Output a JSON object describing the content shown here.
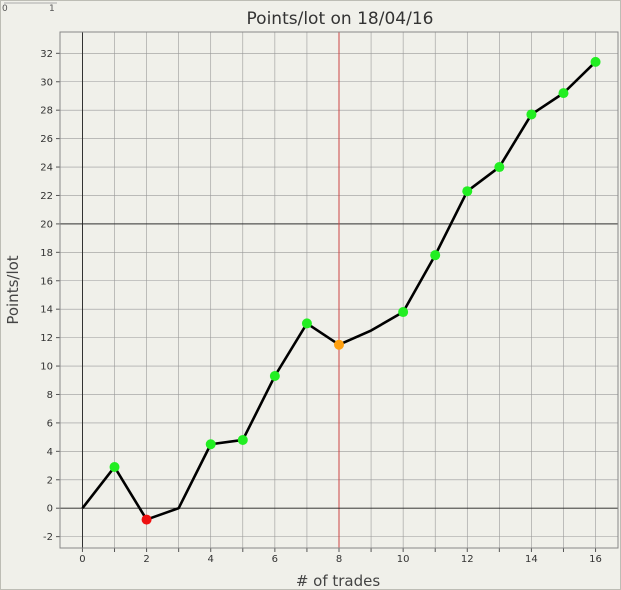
{
  "corner": {
    "left": "0",
    "right": "1"
  },
  "chart_data": {
    "type": "line",
    "title": "Points/lot on 18/04/16",
    "xlabel": "# of trades",
    "ylabel": "Points/lot",
    "xlim": [
      -0.7,
      16.7
    ],
    "ylim": [
      -2.8,
      33.5
    ],
    "x_ticks": [
      0,
      2,
      4,
      6,
      8,
      10,
      12,
      14,
      16
    ],
    "y_ticks": [
      -2,
      0,
      2,
      4,
      6,
      8,
      10,
      12,
      14,
      16,
      18,
      20,
      22,
      24,
      26,
      28,
      30,
      32
    ],
    "grid": true,
    "reference_lines": {
      "y": 20,
      "x": 8
    },
    "x": [
      0,
      1,
      2,
      3,
      4,
      5,
      6,
      7,
      8,
      9,
      10,
      11,
      12,
      13,
      14,
      15,
      16
    ],
    "y": [
      0,
      2.9,
      -0.8,
      0,
      4.5,
      4.8,
      9.3,
      13.0,
      11.5,
      12.5,
      13.8,
      17.8,
      22.3,
      24.0,
      27.7,
      29.2,
      31.4
    ],
    "markers": [
      {
        "x": 1,
        "y": 2.9,
        "color": "#22ee22"
      },
      {
        "x": 2,
        "y": -0.8,
        "color": "#ee1111"
      },
      {
        "x": 4,
        "y": 4.5,
        "color": "#22ee22"
      },
      {
        "x": 5,
        "y": 4.8,
        "color": "#22ee22"
      },
      {
        "x": 6,
        "y": 9.3,
        "color": "#22ee22"
      },
      {
        "x": 7,
        "y": 13.0,
        "color": "#22ee22"
      },
      {
        "x": 8,
        "y": 11.5,
        "color": "#ffa010"
      },
      {
        "x": 10,
        "y": 13.8,
        "color": "#22ee22"
      },
      {
        "x": 11,
        "y": 17.8,
        "color": "#22ee22"
      },
      {
        "x": 12,
        "y": 22.3,
        "color": "#22ee22"
      },
      {
        "x": 13,
        "y": 24.0,
        "color": "#22ee22"
      },
      {
        "x": 14,
        "y": 27.7,
        "color": "#22ee22"
      },
      {
        "x": 15,
        "y": 29.2,
        "color": "#22ee22"
      },
      {
        "x": 16,
        "y": 31.4,
        "color": "#22ee22"
      }
    ],
    "line_color": "#000000",
    "grid_color": "#999999",
    "reference_line_colors": {
      "y": "#333333",
      "x": "#cc4444"
    }
  }
}
